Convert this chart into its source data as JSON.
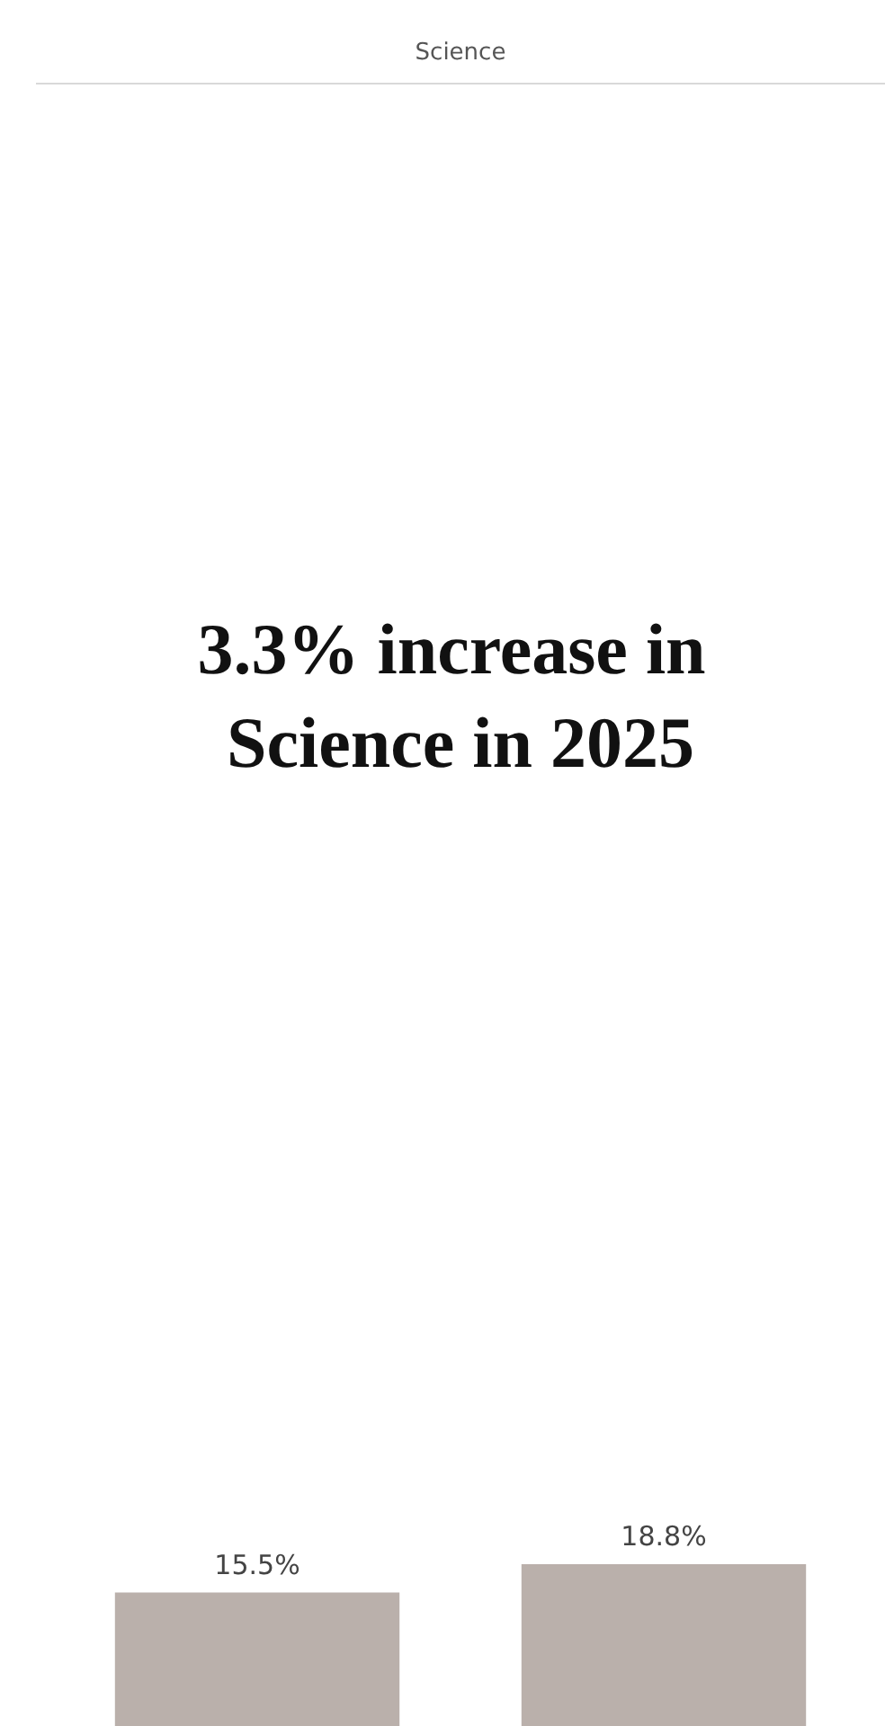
{
  "chart_data": {
    "type": "bar",
    "title": "Science",
    "annotations": [
      "3.3% increase in Science in 2025"
    ],
    "categories": [
      null,
      null
    ],
    "values": [
      15.5,
      18.8
    ],
    "value_labels": [
      "15.5%",
      "18.8%"
    ],
    "color": "#bab0ab"
  }
}
